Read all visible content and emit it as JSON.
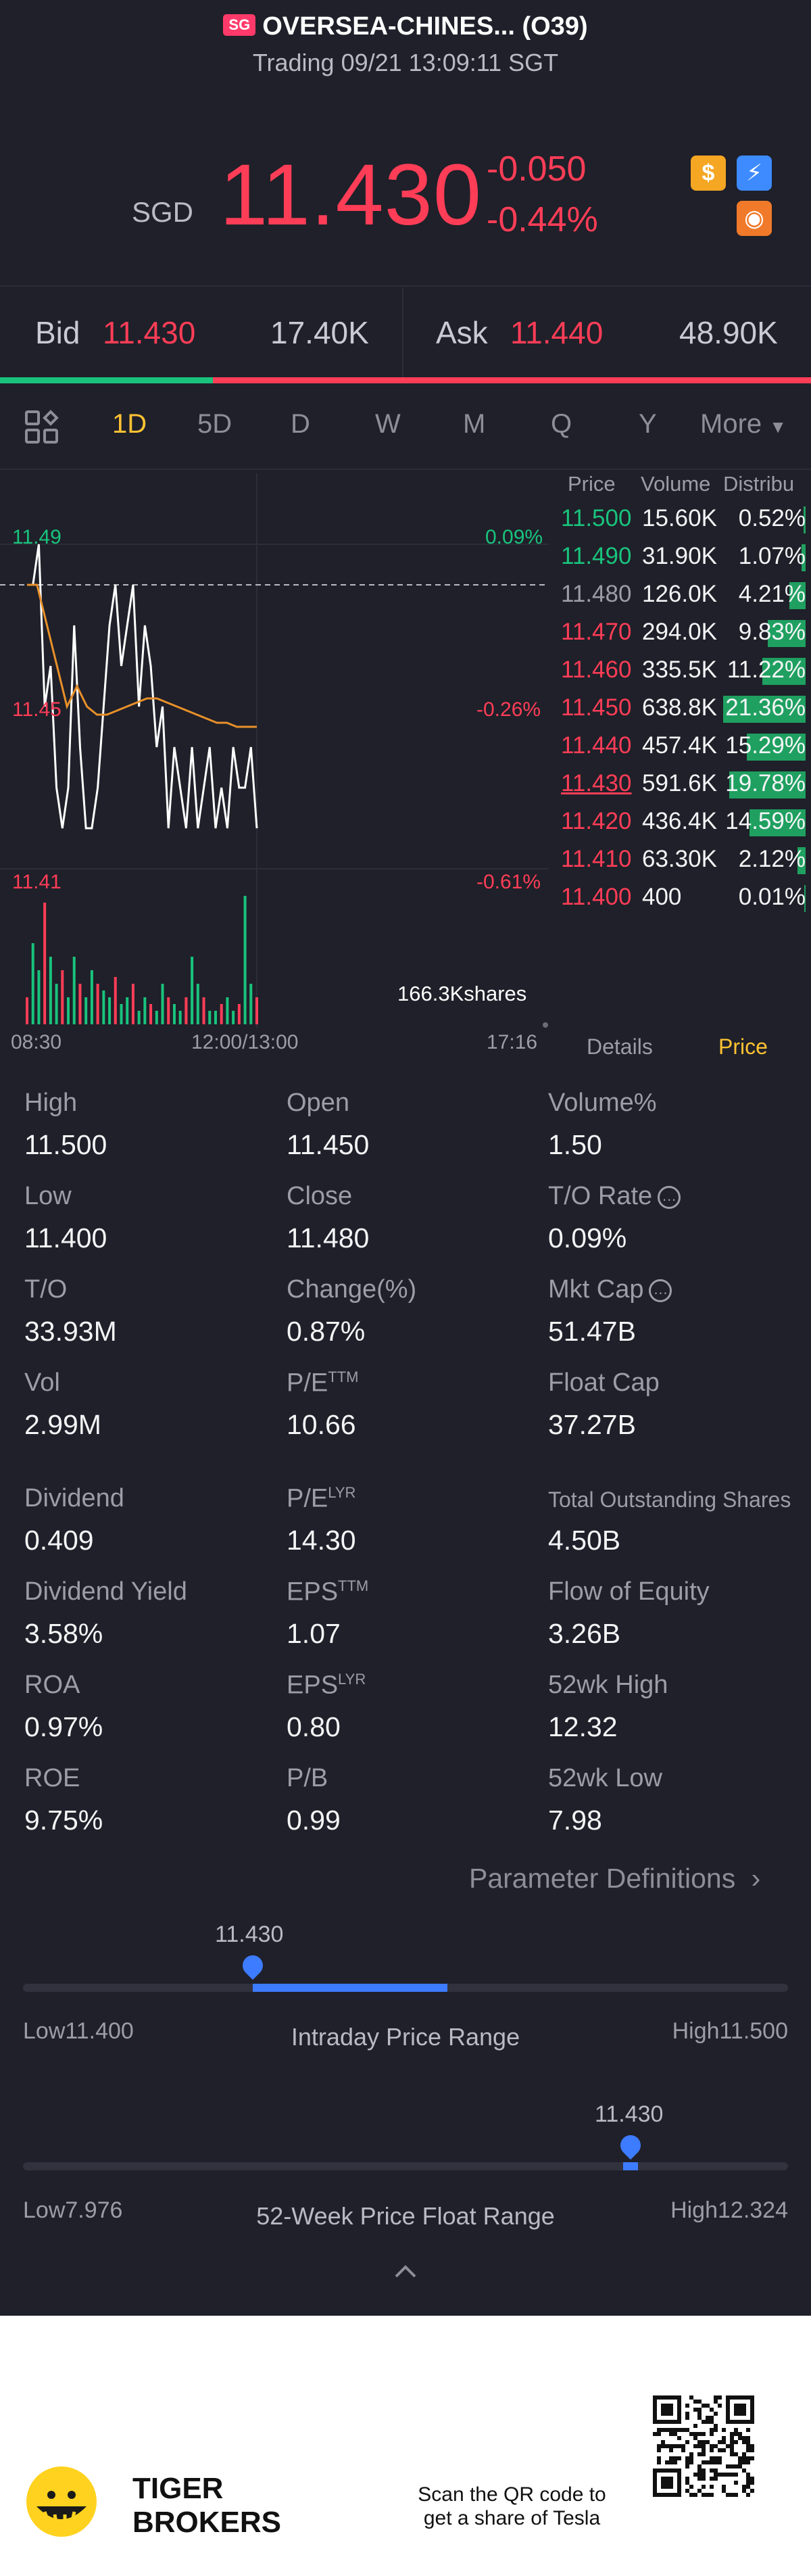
{
  "header": {
    "market_badge": "SG",
    "title": "OVERSEA-CHINES... (O39)",
    "subtitle": "Trading 09/21 13:09:11 SGT"
  },
  "quote": {
    "currency": "SGD",
    "price": "11.430",
    "change": "-0.050",
    "change_pct": "-0.44%",
    "icons": [
      "dollar-icon",
      "flash-icon",
      "options-icon"
    ]
  },
  "bid_ask": {
    "bid_label": "Bid",
    "bid_price": "11.430",
    "bid_size": "17.40K",
    "ask_label": "Ask",
    "ask_price": "11.440",
    "ask_size": "48.90K",
    "bid_share": 0.263
  },
  "periods": {
    "tabs": [
      "1D",
      "5D",
      "D",
      "W",
      "M",
      "Q",
      "Y",
      "More"
    ],
    "active": "1D"
  },
  "chart": {
    "y_high": "11.49",
    "y_mid": "11.45",
    "y_low": "11.41",
    "pct_high": "0.09%",
    "pct_mid": "-0.26%",
    "pct_low": "-0.61%",
    "volume_label": "166.3Kshares",
    "x_start": "08:30",
    "x_mid": "12:00/13:00",
    "x_end": "17:16",
    "colors": {
      "line": "#ffffff",
      "avg": "#e8902a",
      "up": "#19c37d",
      "down": "#ff3d57"
    }
  },
  "chart_data": {
    "type": "line",
    "ylim": [
      11.41,
      11.49
    ],
    "prev_close": 11.48,
    "price_series": [
      11.48,
      11.48,
      11.49,
      11.45,
      11.46,
      11.43,
      11.42,
      11.43,
      11.47,
      11.44,
      11.42,
      11.42,
      11.43,
      11.45,
      11.47,
      11.48,
      11.46,
      11.47,
      11.48,
      11.45,
      11.47,
      11.46,
      11.44,
      11.45,
      11.42,
      11.44,
      11.43,
      11.42,
      11.44,
      11.42,
      11.43,
      11.44,
      11.42,
      11.43,
      11.42,
      11.44,
      11.43,
      11.43,
      11.44,
      11.42
    ],
    "avg_series": [
      11.48,
      11.48,
      11.47,
      11.46,
      11.45,
      11.455,
      11.45,
      11.448,
      11.448,
      11.449,
      11.45,
      11.451,
      11.452,
      11.452,
      11.451,
      11.45,
      11.449,
      11.448,
      11.447,
      11.446,
      11.446,
      11.445,
      11.445,
      11.445
    ],
    "volume_series": [
      0.2,
      0.6,
      0.4,
      0.9,
      0.5,
      0.3,
      0.4,
      0.2,
      0.5,
      0.3,
      0.2,
      0.4,
      0.3,
      0.25,
      0.2,
      0.35,
      0.15,
      0.2,
      0.3,
      0.1,
      0.2,
      0.15,
      0.1,
      0.3,
      0.2,
      0.15,
      0.1,
      0.2,
      0.5,
      0.3,
      0.2,
      0.1,
      0.1,
      0.15,
      0.2,
      0.1,
      0.15,
      0.95,
      0.3,
      0.2
    ]
  },
  "depth": {
    "headers": [
      "Price",
      "Volume",
      "Distribu"
    ],
    "rows": [
      {
        "price": "11.500",
        "volume": "15.60K",
        "pct": "0.52%",
        "color": "#19c37d",
        "share": 0.0052
      },
      {
        "price": "11.490",
        "volume": "31.90K",
        "pct": "1.07%",
        "color": "#19c37d",
        "share": 0.0107
      },
      {
        "price": "11.480",
        "volume": "126.0K",
        "pct": "4.21%",
        "color": "#9c9da6",
        "share": 0.0421
      },
      {
        "price": "11.470",
        "volume": "294.0K",
        "pct": "9.83%",
        "color": "#ff3d57",
        "share": 0.0983
      },
      {
        "price": "11.460",
        "volume": "335.5K",
        "pct": "11.22%",
        "color": "#ff3d57",
        "share": 0.1122
      },
      {
        "price": "11.450",
        "volume": "638.8K",
        "pct": "21.36%",
        "color": "#ff3d57",
        "share": 0.2136
      },
      {
        "price": "11.440",
        "volume": "457.4K",
        "pct": "15.29%",
        "color": "#ff3d57",
        "share": 0.1529
      },
      {
        "price": "11.430",
        "volume": "591.6K",
        "pct": "19.78%",
        "color": "#ff3d57",
        "share": 0.1978
      },
      {
        "price": "11.420",
        "volume": "436.4K",
        "pct": "14.59%",
        "color": "#ff3d57",
        "share": 0.1459
      },
      {
        "price": "11.410",
        "volume": "63.30K",
        "pct": "2.12%",
        "color": "#ff3d57",
        "share": 0.0212
      },
      {
        "price": "11.400",
        "volume": "400",
        "pct": "0.01%",
        "color": "#ff3d57",
        "share": 0.0001
      }
    ],
    "tabs": [
      "Details",
      "Price"
    ],
    "active_tab": "Price"
  },
  "stats": {
    "high": {
      "label": "High",
      "value": "11.500"
    },
    "open": {
      "label": "Open",
      "value": "11.450"
    },
    "volume_pct": {
      "label": "Volume%",
      "value": "1.50"
    },
    "low": {
      "label": "Low",
      "value": "11.400"
    },
    "close": {
      "label": "Close",
      "value": "11.480"
    },
    "to_rate": {
      "label": "T/O Rate",
      "value": "0.09%"
    },
    "to": {
      "label": "T/O",
      "value": "33.93M"
    },
    "change_pct": {
      "label": "Change(%)",
      "value": "0.87%"
    },
    "mkt_cap": {
      "label": "Mkt Cap",
      "value": "51.47B"
    },
    "vol": {
      "label": "Vol",
      "value": "2.99M"
    },
    "pe_ttm": {
      "label": "P/E",
      "sup": "TTM",
      "value": "10.66"
    },
    "float_cap": {
      "label": "Float Cap",
      "value": "37.27B"
    },
    "dividend": {
      "label": "Dividend",
      "value": "0.409"
    },
    "pe_lyr": {
      "label": "P/E",
      "sup": "LYR",
      "value": "14.30"
    },
    "total_shares": {
      "label": "Total Outstanding Shares",
      "value": "4.50B"
    },
    "div_yield": {
      "label": "Dividend Yield",
      "value": "3.58%"
    },
    "eps_ttm": {
      "label": "EPS",
      "sup": "TTM",
      "value": "1.07"
    },
    "flow_equity": {
      "label": "Flow of Equity",
      "value": "3.26B"
    },
    "roa": {
      "label": "ROA",
      "value": "0.97%"
    },
    "eps_lyr": {
      "label": "EPS",
      "sup": "LYR",
      "value": "0.80"
    },
    "wk52_high": {
      "label": "52wk High",
      "value": "12.32"
    },
    "roe": {
      "label": "ROE",
      "value": "9.75%"
    },
    "pb": {
      "label": "P/B",
      "value": "0.99"
    },
    "wk52_low": {
      "label": "52wk Low",
      "value": "7.98"
    },
    "param_link": "Parameter Definitions"
  },
  "ranges": {
    "intraday": {
      "value": "11.430",
      "low": "Low11.400",
      "high": "High11.500",
      "title": "Intraday Price Range",
      "position": 0.3,
      "fill_end": 0.555
    },
    "week52": {
      "value": "11.430",
      "low": "Low7.976",
      "high": "High12.324",
      "title": "52-Week Price Float Range",
      "position": 0.794
    }
  },
  "footer": {
    "brand_line1": "TIGER",
    "brand_line2": "BROKERS",
    "qr_text1": "Scan the QR code to",
    "qr_text2": "get a share of Tesla"
  }
}
